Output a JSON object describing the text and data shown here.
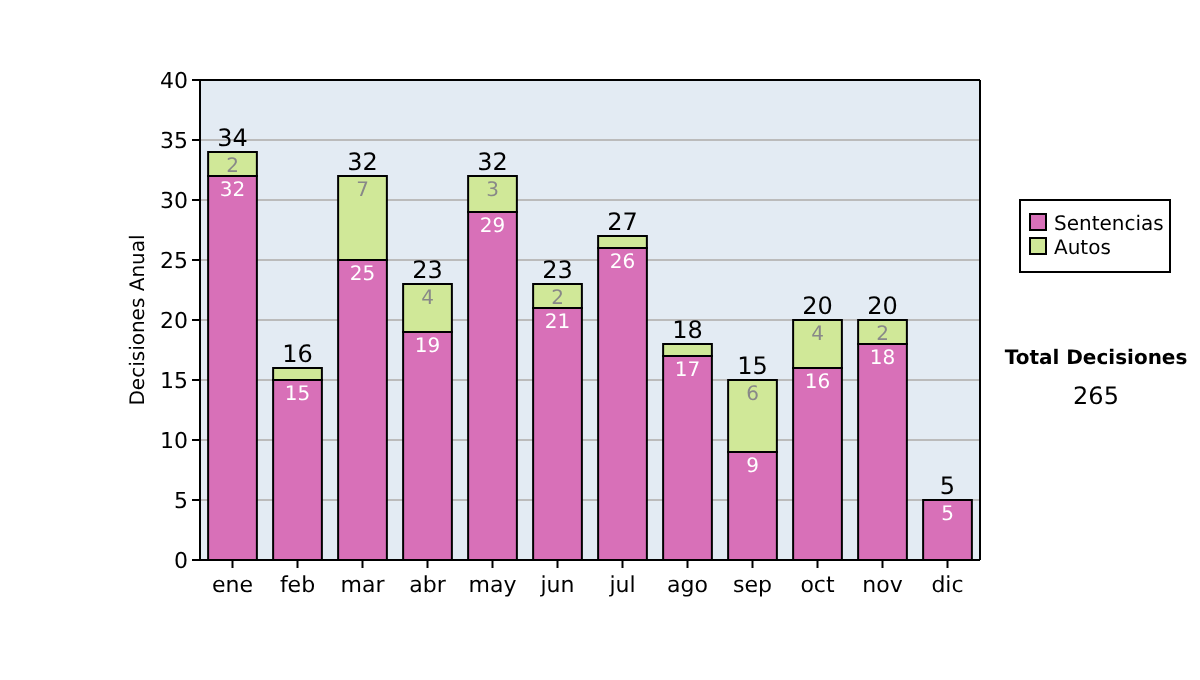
{
  "chart_data": {
    "type": "bar",
    "stacked": true,
    "ylabel": "Decisiones Anual",
    "categories": [
      "ene",
      "feb",
      "mar",
      "abr",
      "may",
      "jun",
      "jul",
      "ago",
      "sep",
      "oct",
      "nov",
      "dic"
    ],
    "series": [
      {
        "name": "Sentencias",
        "color": "#d870b8",
        "values": [
          32,
          15,
          25,
          19,
          29,
          21,
          26,
          17,
          9,
          16,
          18,
          5
        ],
        "value_labels": [
          "32",
          "15",
          "25",
          "19",
          "29",
          "21",
          "26",
          "17",
          "9",
          "16",
          "18",
          "5"
        ]
      },
      {
        "name": "Autos",
        "color": "#d0e898",
        "values": [
          2,
          1,
          7,
          4,
          3,
          2,
          1,
          1,
          6,
          4,
          2,
          0
        ],
        "value_labels": [
          "2",
          null,
          "7",
          "4",
          "3",
          "2",
          null,
          null,
          "6",
          "4",
          "2",
          null
        ]
      }
    ],
    "totals": [
      "34",
      "16",
      "32",
      "23",
      "32",
      "23",
      "27",
      "18",
      "15",
      "20",
      "20",
      "5"
    ],
    "ylim": [
      0,
      40
    ],
    "yticks": [
      0,
      5,
      10,
      15,
      20,
      25,
      30,
      35,
      40
    ],
    "grid": "y",
    "legend": "right",
    "annotations": [
      "Total Decisiones",
      "265"
    ]
  }
}
